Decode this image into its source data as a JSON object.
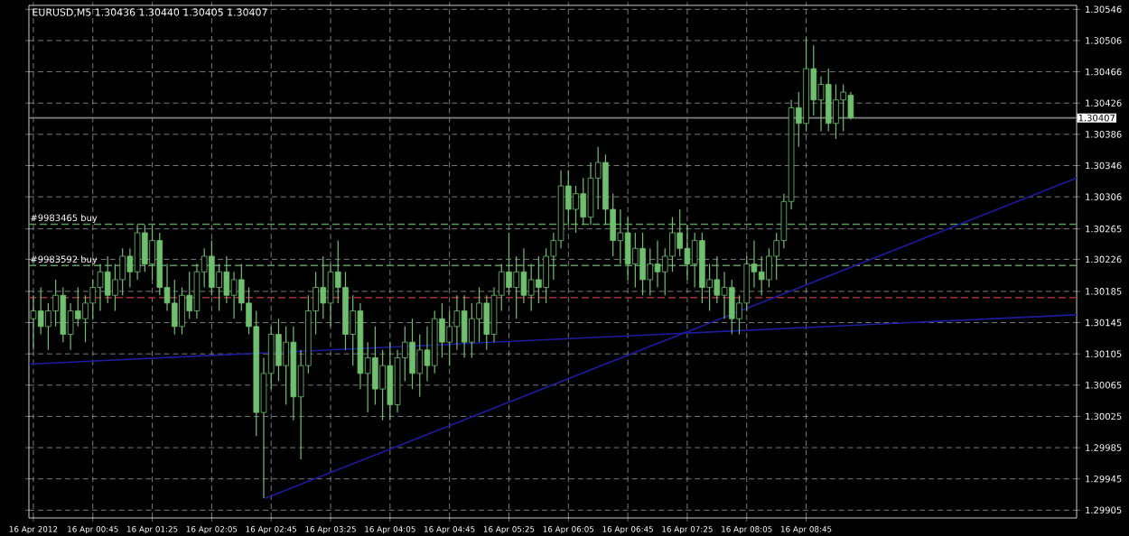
{
  "chart_data": {
    "type": "candlestick",
    "title": "EURUSD,M5  1.30436 1.30440 1.30405 1.30407",
    "color": "#6fbf6f",
    "x": [
      "2012-04-16T00:05",
      "2012-04-16T00:10",
      "2012-04-16T00:15",
      "2012-04-16T00:20",
      "2012-04-16T00:25",
      "2012-04-16T00:30",
      "2012-04-16T00:35",
      "2012-04-16T00:40",
      "2012-04-16T00:45",
      "2012-04-16T00:50",
      "2012-04-16T00:55",
      "2012-04-16T01:00",
      "2012-04-16T01:05",
      "2012-04-16T01:10",
      "2012-04-16T01:15",
      "2012-04-16T01:20",
      "2012-04-16T01:25",
      "2012-04-16T01:30",
      "2012-04-16T01:35",
      "2012-04-16T01:40",
      "2012-04-16T01:45",
      "2012-04-16T01:50",
      "2012-04-16T01:55",
      "2012-04-16T02:00",
      "2012-04-16T02:05",
      "2012-04-16T02:10",
      "2012-04-16T02:15",
      "2012-04-16T02:20",
      "2012-04-16T02:25",
      "2012-04-16T02:30",
      "2012-04-16T02:35",
      "2012-04-16T02:40",
      "2012-04-16T02:45",
      "2012-04-16T02:50",
      "2012-04-16T02:55",
      "2012-04-16T03:00",
      "2012-04-16T03:05",
      "2012-04-16T03:10",
      "2012-04-16T03:15",
      "2012-04-16T03:20",
      "2012-04-16T03:25",
      "2012-04-16T03:30",
      "2012-04-16T03:35",
      "2012-04-16T03:40",
      "2012-04-16T03:45",
      "2012-04-16T03:50",
      "2012-04-16T03:55",
      "2012-04-16T04:00",
      "2012-04-16T04:05",
      "2012-04-16T04:10",
      "2012-04-16T04:15",
      "2012-04-16T04:20",
      "2012-04-16T04:25",
      "2012-04-16T04:30",
      "2012-04-16T04:35",
      "2012-04-16T04:40",
      "2012-04-16T04:45",
      "2012-04-16T04:50",
      "2012-04-16T04:55",
      "2012-04-16T05:00",
      "2012-04-16T05:05",
      "2012-04-16T05:10",
      "2012-04-16T05:15",
      "2012-04-16T05:20",
      "2012-04-16T05:25",
      "2012-04-16T05:30",
      "2012-04-16T05:35",
      "2012-04-16T05:40",
      "2012-04-16T05:45",
      "2012-04-16T05:50",
      "2012-04-16T05:55",
      "2012-04-16T06:00",
      "2012-04-16T06:05",
      "2012-04-16T06:10",
      "2012-04-16T06:15",
      "2012-04-16T06:20",
      "2012-04-16T06:25",
      "2012-04-16T06:30",
      "2012-04-16T06:35",
      "2012-04-16T06:40",
      "2012-04-16T06:45",
      "2012-04-16T06:50",
      "2012-04-16T06:55",
      "2012-04-16T07:00",
      "2012-04-16T07:05",
      "2012-04-16T07:10",
      "2012-04-16T07:15",
      "2012-04-16T07:20",
      "2012-04-16T07:25",
      "2012-04-16T07:30",
      "2012-04-16T07:35",
      "2012-04-16T07:40",
      "2012-04-16T07:45",
      "2012-04-16T07:50",
      "2012-04-16T07:55",
      "2012-04-16T08:00",
      "2012-04-16T08:05",
      "2012-04-16T08:10",
      "2012-04-16T08:15",
      "2012-04-16T08:20",
      "2012-04-16T08:25",
      "2012-04-16T08:30",
      "2012-04-16T08:35",
      "2012-04-16T08:40",
      "2012-04-16T08:45",
      "2012-04-16T08:50",
      "2012-04-16T08:55",
      "2012-04-16T09:00",
      "2012-04-16T09:05",
      "2012-04-16T09:10",
      "2012-04-16T09:15"
    ],
    "ohlc": [
      [
        1.3015,
        1.3018,
        1.3011,
        1.3016
      ],
      [
        1.3016,
        1.3019,
        1.3013,
        1.3014
      ],
      [
        1.3014,
        1.3017,
        1.3011,
        1.3016
      ],
      [
        1.3016,
        1.302,
        1.3014,
        1.3018
      ],
      [
        1.3018,
        1.3019,
        1.3012,
        1.3013
      ],
      [
        1.3013,
        1.3017,
        1.3011,
        1.3016
      ],
      [
        1.3016,
        1.3019,
        1.3014,
        1.3015
      ],
      [
        1.3015,
        1.3018,
        1.3012,
        1.3017
      ],
      [
        1.3017,
        1.302,
        1.3015,
        1.3019
      ],
      [
        1.3019,
        1.3022,
        1.3016,
        1.3021
      ],
      [
        1.3021,
        1.3023,
        1.3017,
        1.3018
      ],
      [
        1.3018,
        1.3022,
        1.3016,
        1.302
      ],
      [
        1.302,
        1.3024,
        1.3018,
        1.3023
      ],
      [
        1.3023,
        1.3024,
        1.3019,
        1.3021
      ],
      [
        1.3021,
        1.3027,
        1.302,
        1.3026
      ],
      [
        1.3026,
        1.3027,
        1.3021,
        1.3022
      ],
      [
        1.3022,
        1.3027,
        1.302,
        1.3025
      ],
      [
        1.3025,
        1.3026,
        1.3018,
        1.3019
      ],
      [
        1.3019,
        1.3022,
        1.3016,
        1.3017
      ],
      [
        1.3017,
        1.302,
        1.3013,
        1.3014
      ],
      [
        1.3014,
        1.3019,
        1.3013,
        1.3018
      ],
      [
        1.3018,
        1.3021,
        1.3015,
        1.3016
      ],
      [
        1.3016,
        1.3022,
        1.3015,
        1.3021
      ],
      [
        1.3021,
        1.3024,
        1.3019,
        1.3023
      ],
      [
        1.3023,
        1.3025,
        1.3018,
        1.3019
      ],
      [
        1.3019,
        1.3022,
        1.3016,
        1.3021
      ],
      [
        1.3021,
        1.3023,
        1.3017,
        1.3018
      ],
      [
        1.3018,
        1.3021,
        1.3015,
        1.302
      ],
      [
        1.302,
        1.3022,
        1.3016,
        1.3017
      ],
      [
        1.3017,
        1.3019,
        1.3013,
        1.3014
      ],
      [
        1.3014,
        1.3016,
        1.3,
        1.3003
      ],
      [
        1.3003,
        1.301,
        1.2992,
        1.3008
      ],
      [
        1.3008,
        1.3014,
        1.3006,
        1.3013
      ],
      [
        1.3013,
        1.3015,
        1.3007,
        1.3009
      ],
      [
        1.3009,
        1.3014,
        1.3004,
        1.3012
      ],
      [
        1.3012,
        1.3014,
        1.3002,
        1.3005
      ],
      [
        1.3005,
        1.3011,
        1.2997,
        1.3009
      ],
      [
        1.3009,
        1.3018,
        1.3008,
        1.3016
      ],
      [
        1.3016,
        1.3021,
        1.3013,
        1.3019
      ],
      [
        1.3019,
        1.3023,
        1.3015,
        1.3017
      ],
      [
        1.3017,
        1.3022,
        1.3014,
        1.3021
      ],
      [
        1.3021,
        1.3025,
        1.3017,
        1.3019
      ],
      [
        1.3019,
        1.3021,
        1.3011,
        1.3013
      ],
      [
        1.3013,
        1.3018,
        1.3009,
        1.3016
      ],
      [
        1.3016,
        1.3017,
        1.3006,
        1.3008
      ],
      [
        1.3008,
        1.3012,
        1.3003,
        1.301
      ],
      [
        1.301,
        1.3014,
        1.3004,
        1.3006
      ],
      [
        1.3006,
        1.3011,
        1.3002,
        1.3009
      ],
      [
        1.3009,
        1.3012,
        1.3002,
        1.3004
      ],
      [
        1.3004,
        1.3011,
        1.3003,
        1.301
      ],
      [
        1.301,
        1.3014,
        1.3007,
        1.3012
      ],
      [
        1.3012,
        1.3015,
        1.3006,
        1.3008
      ],
      [
        1.3008,
        1.3013,
        1.3005,
        1.3011
      ],
      [
        1.3011,
        1.3014,
        1.3007,
        1.3009
      ],
      [
        1.3009,
        1.3016,
        1.3008,
        1.3015
      ],
      [
        1.3015,
        1.3017,
        1.301,
        1.3012
      ],
      [
        1.3012,
        1.3016,
        1.3009,
        1.3014
      ],
      [
        1.3014,
        1.3018,
        1.3011,
        1.3016
      ],
      [
        1.3016,
        1.3018,
        1.301,
        1.3012
      ],
      [
        1.3012,
        1.3017,
        1.301,
        1.3015
      ],
      [
        1.3015,
        1.3019,
        1.3012,
        1.3017
      ],
      [
        1.3017,
        1.3018,
        1.3011,
        1.3013
      ],
      [
        1.3013,
        1.3019,
        1.3012,
        1.3018
      ],
      [
        1.3018,
        1.3022,
        1.3016,
        1.3021
      ],
      [
        1.3021,
        1.3026,
        1.3018,
        1.3019
      ],
      [
        1.3019,
        1.3023,
        1.3015,
        1.3021
      ],
      [
        1.3021,
        1.3024,
        1.3017,
        1.3018
      ],
      [
        1.3018,
        1.3022,
        1.3016,
        1.302
      ],
      [
        1.302,
        1.3023,
        1.3017,
        1.3019
      ],
      [
        1.3019,
        1.3024,
        1.3017,
        1.3023
      ],
      [
        1.3023,
        1.3026,
        1.302,
        1.3025
      ],
      [
        1.3025,
        1.3034,
        1.3024,
        1.3032
      ],
      [
        1.3032,
        1.3034,
        1.3027,
        1.3029
      ],
      [
        1.3029,
        1.3032,
        1.3026,
        1.3031
      ],
      [
        1.3031,
        1.3033,
        1.3027,
        1.3028
      ],
      [
        1.3028,
        1.3035,
        1.3027,
        1.3033
      ],
      [
        1.3033,
        1.3037,
        1.3029,
        1.3035
      ],
      [
        1.3035,
        1.3036,
        1.3027,
        1.3029
      ],
      [
        1.3029,
        1.3031,
        1.3023,
        1.3025
      ],
      [
        1.3025,
        1.3029,
        1.3022,
        1.3026
      ],
      [
        1.3026,
        1.3028,
        1.302,
        1.3022
      ],
      [
        1.3022,
        1.3026,
        1.3019,
        1.3024
      ],
      [
        1.3024,
        1.3026,
        1.3018,
        1.302
      ],
      [
        1.302,
        1.3024,
        1.3018,
        1.3022
      ],
      [
        1.3022,
        1.3025,
        1.3019,
        1.3021
      ],
      [
        1.3021,
        1.3024,
        1.3018,
        1.3023
      ],
      [
        1.3023,
        1.3028,
        1.3021,
        1.3026
      ],
      [
        1.3026,
        1.3029,
        1.3023,
        1.3024
      ],
      [
        1.3024,
        1.3027,
        1.302,
        1.3022
      ],
      [
        1.3022,
        1.3026,
        1.3019,
        1.3025
      ],
      [
        1.3025,
        1.3026,
        1.3017,
        1.3019
      ],
      [
        1.3019,
        1.3022,
        1.3016,
        1.302
      ],
      [
        1.302,
        1.3023,
        1.3017,
        1.3018
      ],
      [
        1.3018,
        1.3021,
        1.3015,
        1.3019
      ],
      [
        1.3019,
        1.302,
        1.3013,
        1.3015
      ],
      [
        1.3015,
        1.3018,
        1.3013,
        1.3017
      ],
      [
        1.3017,
        1.3023,
        1.3016,
        1.3022
      ],
      [
        1.3022,
        1.3025,
        1.3019,
        1.3021
      ],
      [
        1.3021,
        1.3023,
        1.3018,
        1.302
      ],
      [
        1.302,
        1.3024,
        1.3019,
        1.3023
      ],
      [
        1.3023,
        1.3026,
        1.302,
        1.3025
      ],
      [
        1.3025,
        1.3031,
        1.3024,
        1.303
      ],
      [
        1.303,
        1.3043,
        1.3029,
        1.3042
      ],
      [
        1.3042,
        1.3044,
        1.3037,
        1.304
      ],
      [
        1.304,
        1.3051,
        1.3039,
        1.3047
      ],
      [
        1.3047,
        1.305,
        1.3041,
        1.3043
      ],
      [
        1.3043,
        1.3046,
        1.3039,
        1.3045
      ],
      [
        1.3045,
        1.3047,
        1.3039,
        1.304
      ],
      [
        1.304,
        1.3045,
        1.3038,
        1.3043
      ],
      [
        1.3043,
        1.3045,
        1.3039,
        1.3044
      ],
      [
        1.30436,
        1.3044,
        1.30405,
        1.30407
      ]
    ],
    "series": [
      {
        "type": "line",
        "color": "#1c1c9c",
        "x": [
          "2012-04-16T00:02",
          "2012-04-16T11:47"
        ],
        "values": [
          1.30092,
          1.30155
        ]
      },
      {
        "type": "line",
        "color": "#1c1c9c",
        "x": [
          "2012-04-16T02:41",
          "2012-04-16T11:47"
        ],
        "values": [
          1.2992,
          1.3033
        ]
      }
    ],
    "ref_lines": [
      {
        "axis": "y",
        "value": 1.30407,
        "label": "1.30407",
        "color": "#808080",
        "line_style": "solid"
      },
      {
        "axis": "y",
        "value": 1.30271,
        "label": "#9983465 buy",
        "color": "#5a9a5a",
        "line_style": "dashed"
      },
      {
        "axis": "y",
        "value": 1.30218,
        "label": "#9983592 buy",
        "color": "#5a9a5a",
        "line_style": "dashed"
      },
      {
        "axis": "y",
        "value": 1.30177,
        "color": "#a03030",
        "line_style": "dashed"
      }
    ],
    "xlim": [
      "2012-04-16T00:02",
      "2012-04-16T11:47"
    ],
    "xticks": [
      {
        "value": "2012-04-16T00:05",
        "label": "16 Apr 2012"
      },
      {
        "value": "2012-04-16T00:45",
        "label": "16 Apr 00:45"
      },
      {
        "value": "2012-04-16T01:25",
        "label": "16 Apr 01:25"
      },
      {
        "value": "2012-04-16T02:05",
        "label": "16 Apr 02:05"
      },
      {
        "value": "2012-04-16T02:45",
        "label": "16 Apr 02:45"
      },
      {
        "value": "2012-04-16T03:25",
        "label": "16 Apr 03:25"
      },
      {
        "value": "2012-04-16T04:05",
        "label": "16 Apr 04:05"
      },
      {
        "value": "2012-04-16T04:45",
        "label": "16 Apr 04:45"
      },
      {
        "value": "2012-04-16T05:25",
        "label": "16 Apr 05:25"
      },
      {
        "value": "2012-04-16T06:05",
        "label": "16 Apr 06:05"
      },
      {
        "value": "2012-04-16T06:45",
        "label": "16 Apr 06:45"
      },
      {
        "value": "2012-04-16T07:25",
        "label": "16 Apr 07:25"
      },
      {
        "value": "2012-04-16T08:05",
        "label": "16 Apr 08:05"
      },
      {
        "value": "2012-04-16T08:45",
        "label": "16 Apr 08:45"
      }
    ],
    "ylim": [
      1.29895,
      1.30551
    ],
    "yticks": [
      1.30546,
      1.30506,
      1.30466,
      1.30426,
      1.30386,
      1.30346,
      1.30306,
      1.30265,
      1.30226,
      1.30185,
      1.30145,
      1.30105,
      1.30065,
      1.30025,
      1.29985,
      1.29945,
      1.29905
    ],
    "grid": true
  }
}
